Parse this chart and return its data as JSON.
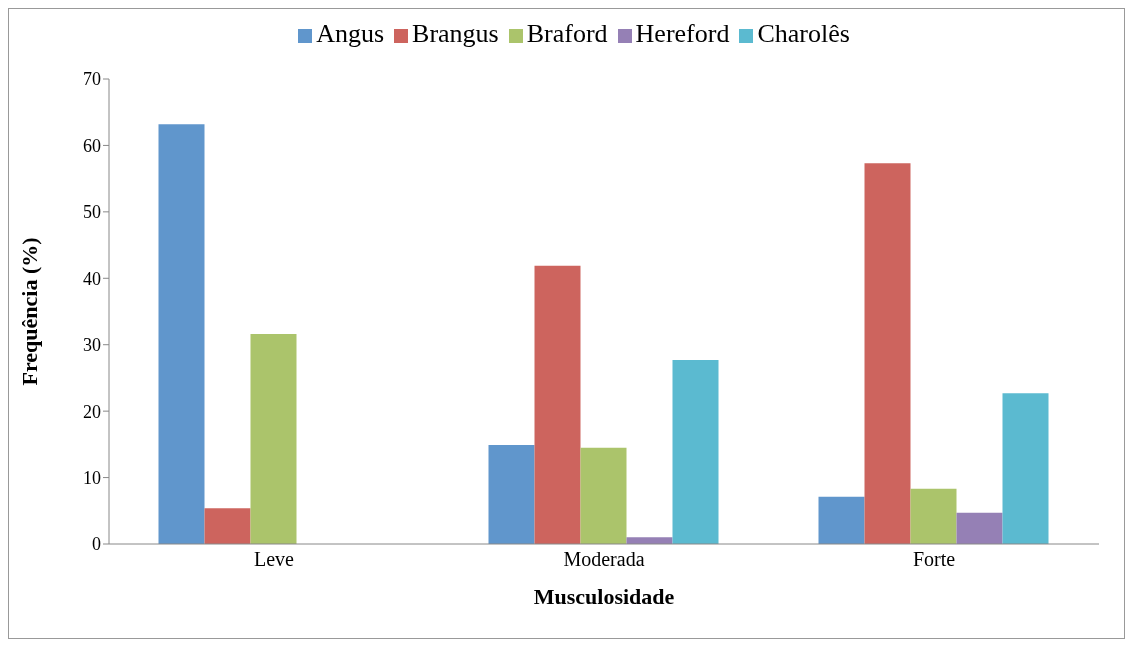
{
  "chart_data": {
    "type": "bar",
    "xlabel": "Musculosidade",
    "ylabel": "Frequência (%)",
    "categories": [
      "Leve",
      "Moderada",
      "Forte"
    ],
    "series": [
      {
        "name": "Angus",
        "color": "#6096cc",
        "values": [
          63.2,
          14.9,
          7.1
        ]
      },
      {
        "name": "Brangus",
        "color": "#cd645e",
        "values": [
          5.4,
          41.9,
          57.3
        ]
      },
      {
        "name": "Braford",
        "color": "#abc46b",
        "values": [
          31.6,
          14.5,
          8.3
        ]
      },
      {
        "name": "Hereford",
        "color": "#9580b5",
        "values": [
          0,
          1.0,
          4.7
        ]
      },
      {
        "name": "Charolês",
        "color": "#5bbad0",
        "values": [
          0,
          27.7,
          22.7
        ]
      }
    ],
    "ylim": [
      0,
      70
    ],
    "yticks": [
      0,
      10,
      20,
      30,
      40,
      50,
      60,
      70
    ],
    "grid": false,
    "legend": "top"
  }
}
